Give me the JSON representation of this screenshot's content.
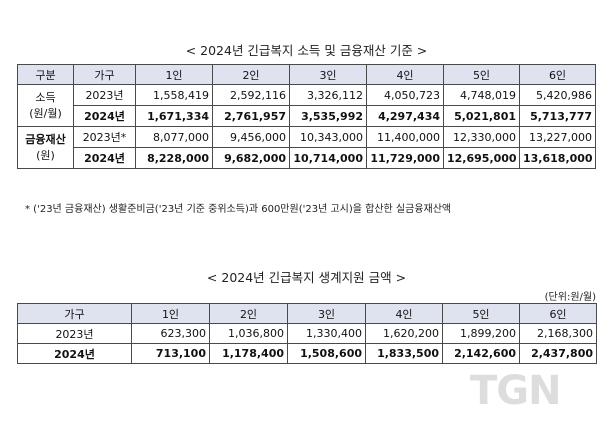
{
  "table1": {
    "title": "< 2024년 긴급복지 소득 및 금융재산 기준 >",
    "headers": [
      "구분",
      "가구",
      "1인",
      "2인",
      "3인",
      "4인",
      "5인",
      "6인"
    ],
    "income": {
      "label1": "소득",
      "label2": "(원/월)",
      "rows": [
        {
          "year": "2023년",
          "values": [
            "1,558,419",
            "2,592,116",
            "3,326,112",
            "4,050,723",
            "4,748,019",
            "5,420,986"
          ]
        },
        {
          "year": "2024년",
          "values": [
            "1,671,334",
            "2,761,957",
            "3,535,992",
            "4,297,434",
            "5,021,801",
            "5,713,777"
          ]
        }
      ]
    },
    "assets": {
      "label1": "금융재산",
      "label2": "(원)",
      "rows": [
        {
          "year": "2023년*",
          "values": [
            "8,077,000",
            "9,456,000",
            "10,343,000",
            "11,400,000",
            "12,330,000",
            "13,227,000"
          ]
        },
        {
          "year": "2024년",
          "values": [
            "8,228,000",
            "9,682,000",
            "10,714,000",
            "11,729,000",
            "12,695,000",
            "13,618,000"
          ]
        }
      ]
    }
  },
  "note": "* ('23년 금융재산) 생활준비금('23년 기준 중위소득)과 600만원('23년 고시)을 합산한 실금융재산액",
  "table2": {
    "title": "< 2024년 긴급복지 생계지원 금액 >",
    "unit": "(단위:원/월)",
    "headers": [
      "가구",
      "1인",
      "2인",
      "3인",
      "4인",
      "5인",
      "6인"
    ],
    "rows": [
      {
        "year": "2023년",
        "values": [
          "623,300",
          "1,036,800",
          "1,330,400",
          "1,620,200",
          "1,899,200",
          "2,168,300"
        ]
      },
      {
        "year": "2024년",
        "values": [
          "713,100",
          "1,178,400",
          "1,508,600",
          "1,833,500",
          "2,142,600",
          "2,437,800"
        ]
      }
    ]
  },
  "watermark": "TGN",
  "colors": {
    "header_bg": "#dfe3ef",
    "border": "#4a4a4a"
  }
}
